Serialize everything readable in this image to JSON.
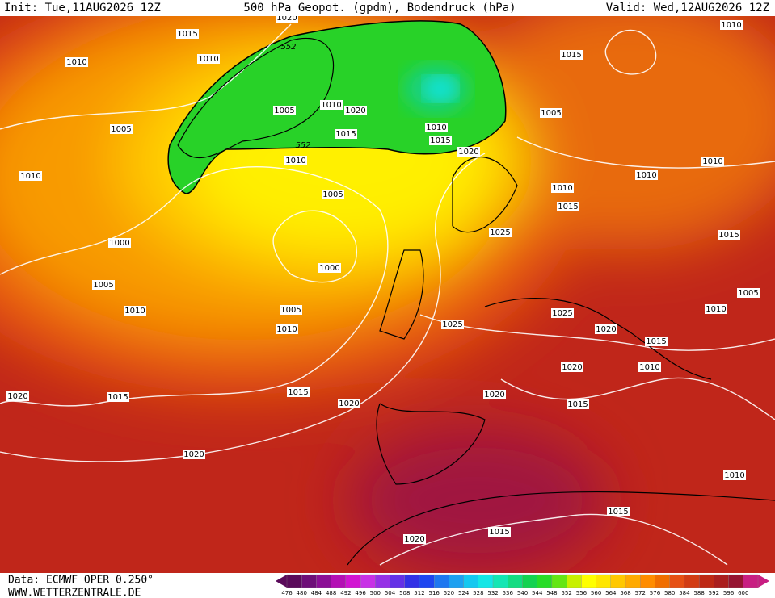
{
  "header": {
    "init": "Init: Tue,11AUG2026 12Z",
    "title": "500 hPa Geopot. (gpdm), Bodendruck (hPa)",
    "valid": "Valid: Wed,12AUG2026 12Z"
  },
  "map": {
    "pressure_labels": [
      "1020",
      "1015",
      "1010",
      "1010",
      "1005",
      "1005",
      "1010",
      "1020",
      "1015",
      "1010",
      "1015",
      "1010",
      "1020",
      "1010",
      "1015",
      "1005",
      "1010",
      "1010",
      "1010",
      "1010",
      "1015",
      "1005",
      "1025",
      "1015",
      "1000",
      "1000",
      "1005",
      "1010",
      "1005",
      "1010",
      "1025",
      "1025",
      "1020",
      "1015",
      "1010",
      "1005",
      "1020",
      "1010",
      "1020",
      "1015",
      "1015",
      "1020",
      "1020",
      "1015",
      "1020",
      "1010",
      "1015",
      "1015",
      "1020"
    ],
    "contour_labels": [
      "552",
      "552"
    ]
  },
  "legend": {
    "values": [
      476,
      480,
      484,
      488,
      492,
      496,
      500,
      504,
      508,
      512,
      516,
      520,
      524,
      528,
      532,
      536,
      540,
      544,
      548,
      552,
      556,
      560,
      564,
      568,
      572,
      576,
      580,
      584,
      588,
      592,
      596,
      600
    ],
    "colors": [
      "#5a0a5a",
      "#6e0f78",
      "#8c0f96",
      "#b40fb4",
      "#d214d2",
      "#c832e6",
      "#9632e6",
      "#6432e6",
      "#3232e6",
      "#1e46f0",
      "#1e78f0",
      "#1ea0f0",
      "#14c8f0",
      "#14e6e6",
      "#14e6b4",
      "#14dc82",
      "#14d250",
      "#28dc28",
      "#64e614",
      "#c8f000",
      "#ffff00",
      "#ffe600",
      "#ffc800",
      "#ffaa00",
      "#ff8c00",
      "#f06e00",
      "#e65014",
      "#d23c14",
      "#be2814",
      "#aa1e1e",
      "#961432",
      "#c81e82"
    ]
  },
  "footer": {
    "data": "Data: ECMWF OPER 0.250°",
    "site": "WWW.WETTERZENTRALE.DE"
  }
}
